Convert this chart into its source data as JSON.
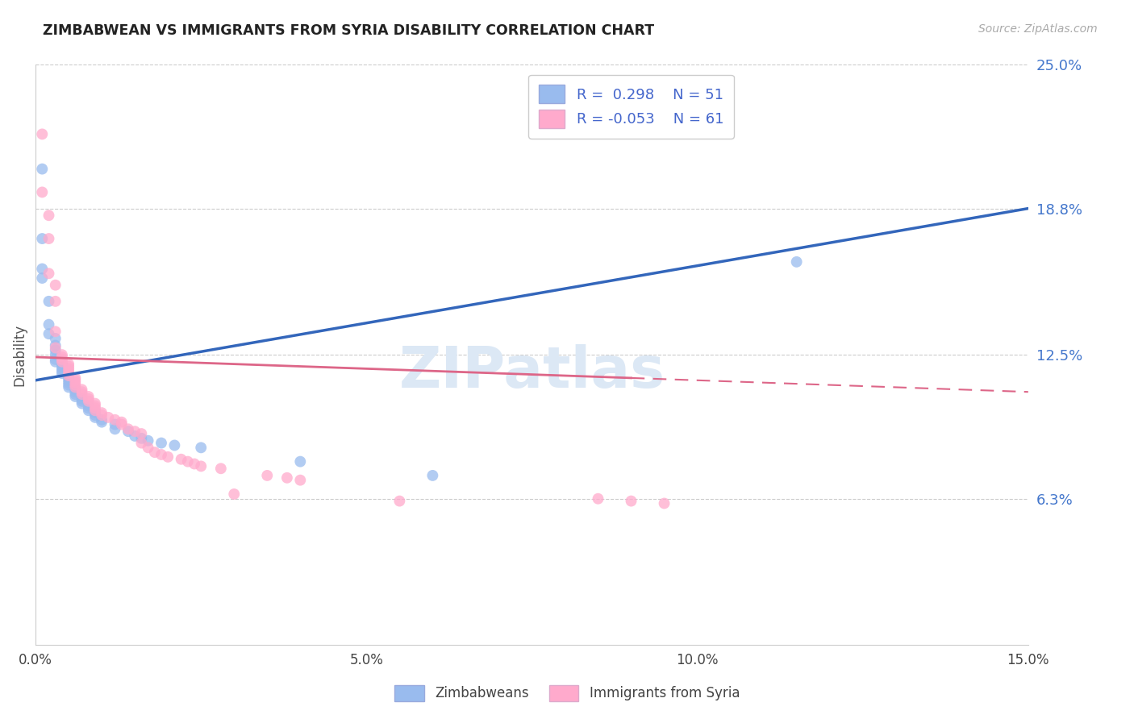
{
  "title": "ZIMBABWEAN VS IMMIGRANTS FROM SYRIA DISABILITY CORRELATION CHART",
  "source": "Source: ZipAtlas.com",
  "ylabel": "Disability",
  "xlim": [
    0.0,
    0.15
  ],
  "ylim": [
    0.0,
    0.25
  ],
  "yticks": [
    0.063,
    0.125,
    0.188,
    0.25
  ],
  "ytick_labels": [
    "6.3%",
    "12.5%",
    "18.8%",
    "25.0%"
  ],
  "xticks": [
    0.0,
    0.05,
    0.1,
    0.15
  ],
  "xtick_labels": [
    "0.0%",
    "5.0%",
    "10.0%",
    "15.0%"
  ],
  "grid_color": "#cccccc",
  "background_color": "#ffffff",
  "blue_color": "#99bbee",
  "pink_color": "#ffaacc",
  "trend_blue_color": "#3366bb",
  "trend_pink_solid_color": "#dd6688",
  "trend_blue_x0": 0.0,
  "trend_blue_y0": 0.114,
  "trend_blue_x1": 0.15,
  "trend_blue_y1": 0.188,
  "trend_pink_x0": 0.0,
  "trend_pink_y0": 0.124,
  "trend_pink_x1": 0.15,
  "trend_pink_y1": 0.109,
  "trend_pink_solid_end": 0.09,
  "blue_dots": [
    [
      0.001,
      0.205
    ],
    [
      0.001,
      0.175
    ],
    [
      0.001,
      0.162
    ],
    [
      0.001,
      0.158
    ],
    [
      0.002,
      0.148
    ],
    [
      0.002,
      0.138
    ],
    [
      0.002,
      0.134
    ],
    [
      0.003,
      0.132
    ],
    [
      0.003,
      0.129
    ],
    [
      0.003,
      0.127
    ],
    [
      0.003,
      0.125
    ],
    [
      0.003,
      0.123
    ],
    [
      0.003,
      0.122
    ],
    [
      0.004,
      0.121
    ],
    [
      0.004,
      0.12
    ],
    [
      0.004,
      0.119
    ],
    [
      0.004,
      0.118
    ],
    [
      0.004,
      0.117
    ],
    [
      0.005,
      0.116
    ],
    [
      0.005,
      0.115
    ],
    [
      0.005,
      0.114
    ],
    [
      0.005,
      0.113
    ],
    [
      0.005,
      0.112
    ],
    [
      0.005,
      0.111
    ],
    [
      0.006,
      0.11
    ],
    [
      0.006,
      0.109
    ],
    [
      0.006,
      0.108
    ],
    [
      0.006,
      0.107
    ],
    [
      0.007,
      0.106
    ],
    [
      0.007,
      0.105
    ],
    [
      0.007,
      0.104
    ],
    [
      0.008,
      0.103
    ],
    [
      0.008,
      0.102
    ],
    [
      0.008,
      0.101
    ],
    [
      0.009,
      0.1
    ],
    [
      0.009,
      0.099
    ],
    [
      0.009,
      0.098
    ],
    [
      0.01,
      0.097
    ],
    [
      0.01,
      0.096
    ],
    [
      0.012,
      0.095
    ],
    [
      0.012,
      0.093
    ],
    [
      0.014,
      0.092
    ],
    [
      0.015,
      0.09
    ],
    [
      0.016,
      0.089
    ],
    [
      0.017,
      0.088
    ],
    [
      0.019,
      0.087
    ],
    [
      0.021,
      0.086
    ],
    [
      0.025,
      0.085
    ],
    [
      0.04,
      0.079
    ],
    [
      0.06,
      0.073
    ],
    [
      0.115,
      0.165
    ]
  ],
  "pink_dots": [
    [
      0.001,
      0.22
    ],
    [
      0.001,
      0.195
    ],
    [
      0.002,
      0.185
    ],
    [
      0.002,
      0.175
    ],
    [
      0.002,
      0.16
    ],
    [
      0.003,
      0.155
    ],
    [
      0.003,
      0.148
    ],
    [
      0.003,
      0.135
    ],
    [
      0.003,
      0.128
    ],
    [
      0.004,
      0.125
    ],
    [
      0.004,
      0.124
    ],
    [
      0.004,
      0.123
    ],
    [
      0.004,
      0.122
    ],
    [
      0.005,
      0.121
    ],
    [
      0.005,
      0.12
    ],
    [
      0.005,
      0.119
    ],
    [
      0.005,
      0.118
    ],
    [
      0.005,
      0.117
    ],
    [
      0.005,
      0.116
    ],
    [
      0.006,
      0.115
    ],
    [
      0.006,
      0.114
    ],
    [
      0.006,
      0.113
    ],
    [
      0.006,
      0.112
    ],
    [
      0.006,
      0.111
    ],
    [
      0.007,
      0.11
    ],
    [
      0.007,
      0.109
    ],
    [
      0.007,
      0.108
    ],
    [
      0.008,
      0.107
    ],
    [
      0.008,
      0.106
    ],
    [
      0.008,
      0.105
    ],
    [
      0.009,
      0.104
    ],
    [
      0.009,
      0.103
    ],
    [
      0.009,
      0.102
    ],
    [
      0.009,
      0.101
    ],
    [
      0.01,
      0.1
    ],
    [
      0.01,
      0.099
    ],
    [
      0.011,
      0.098
    ],
    [
      0.012,
      0.097
    ],
    [
      0.013,
      0.096
    ],
    [
      0.013,
      0.095
    ],
    [
      0.014,
      0.093
    ],
    [
      0.015,
      0.092
    ],
    [
      0.016,
      0.091
    ],
    [
      0.016,
      0.087
    ],
    [
      0.017,
      0.085
    ],
    [
      0.018,
      0.083
    ],
    [
      0.019,
      0.082
    ],
    [
      0.02,
      0.081
    ],
    [
      0.022,
      0.08
    ],
    [
      0.023,
      0.079
    ],
    [
      0.024,
      0.078
    ],
    [
      0.025,
      0.077
    ],
    [
      0.028,
      0.076
    ],
    [
      0.03,
      0.065
    ],
    [
      0.035,
      0.073
    ],
    [
      0.038,
      0.072
    ],
    [
      0.04,
      0.071
    ],
    [
      0.055,
      0.062
    ],
    [
      0.085,
      0.063
    ],
    [
      0.09,
      0.062
    ],
    [
      0.095,
      0.061
    ]
  ]
}
